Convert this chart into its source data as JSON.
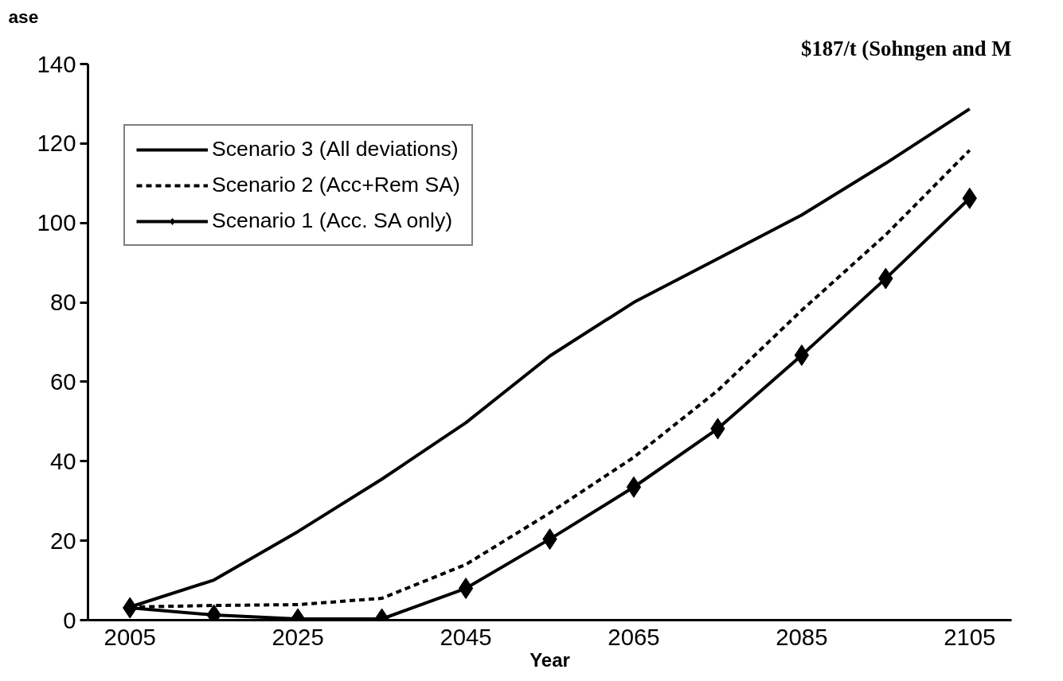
{
  "chart_data": {
    "type": "line",
    "title": "$187/t (Sohngen and M",
    "ylabel": "ase",
    "xlabel": "Year",
    "categories": [
      "2005",
      null,
      "2025",
      null,
      "2045",
      null,
      "2065",
      null,
      "2085",
      null,
      "2105"
    ],
    "series": [
      {
        "name": "Scenario 3 (All deviations)",
        "color": "#000000",
        "line_style": "solid",
        "marker": "none",
        "values": [
          3.3,
          10.1,
          22.3,
          35.5,
          49.7,
          66.5,
          80,
          91,
          102,
          115,
          128.7
        ]
      },
      {
        "name": "Scenario 2 (Acc+Rem SA)",
        "color": "#000000",
        "line_style": "dashed",
        "marker": "none",
        "values": [
          3.3,
          3.7,
          3.9,
          5.5,
          14,
          27,
          41,
          57.8,
          78,
          97,
          118.3
        ]
      },
      {
        "name": "Scenario 1 (Acc. SA only)",
        "color": "#000000",
        "line_style": "solid",
        "marker": "diamond",
        "values": [
          3.1,
          1.3,
          0.3,
          0.3,
          8,
          20.4,
          33.5,
          48.2,
          66.7,
          86,
          106.2
        ]
      }
    ],
    "ylim": [
      0,
      140
    ],
    "yticks": [
      0,
      20,
      40,
      60,
      80,
      100,
      120,
      140
    ],
    "grid": false,
    "legend": "top left"
  }
}
